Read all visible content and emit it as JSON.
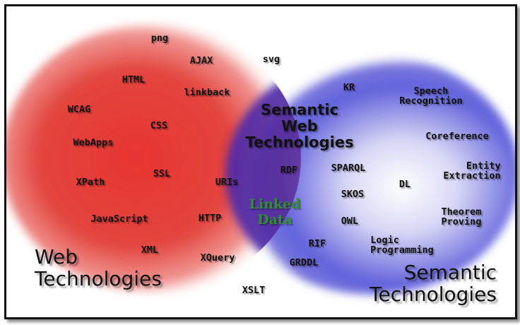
{
  "colors": {
    "web_circle": "#e23a36",
    "semantic_circle": "#5c5ad8",
    "overlap": "#5a2a98",
    "linked_data_text": "#2f8f2f",
    "frame_border": "#111111"
  },
  "left_label": {
    "line1": "Web",
    "line2": "Technologies"
  },
  "right_label": {
    "line1": "Semantic",
    "line2": "Technologies"
  },
  "center_label": {
    "line1": "Semantic",
    "line2": "Web",
    "line3": "Technologies"
  },
  "linked_data": {
    "line1": "Linked",
    "line2": "Data"
  },
  "web_terms": {
    "png": "png",
    "ajax": "AJAX",
    "svg": "svg",
    "html": "HTML",
    "linkback": "linkback",
    "wcag": "WCAG",
    "css": "CSS",
    "webapps": "WebApps",
    "ssl": "SSL",
    "xpath": "XPath",
    "uris": "URIs",
    "javascript": "JavaScript",
    "http": "HTTP",
    "xml": "XML",
    "xquery": "XQuery",
    "xslt": "XSLT"
  },
  "overlap_terms": {
    "rdf": "RDF",
    "sparql": "SPARQL",
    "skos": "SKOS",
    "owl": "OWL",
    "rif": "RIF",
    "grddl": "GRDDL"
  },
  "semantic_terms": {
    "kr": "KR",
    "speech_recognition": {
      "line1": "Speech",
      "line2": "Recognition"
    },
    "coreference": "Coreference",
    "entity_extraction": {
      "line1": "Entity",
      "line2": "Extraction"
    },
    "dl": "DL",
    "theorem_proving": {
      "line1": "Theorem",
      "line2": "Proving"
    },
    "logic_programming": {
      "line1": "Logic",
      "line2": "Programming"
    }
  }
}
